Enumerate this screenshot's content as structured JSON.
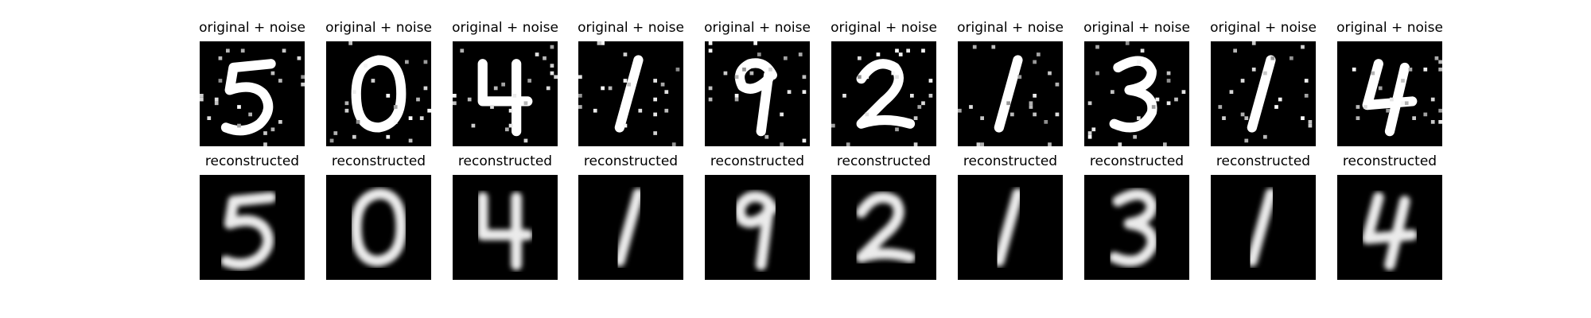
{
  "figure": {
    "noisy_title": "original + noise",
    "reconstructed_title": "reconstructed",
    "digits": [
      "5",
      "0",
      "4",
      "1",
      "9",
      "2",
      "1",
      "3",
      "1",
      "4"
    ],
    "colors": {
      "background": "#ffffff",
      "image_bg": "#000000",
      "stroke": "#ffffff"
    }
  }
}
